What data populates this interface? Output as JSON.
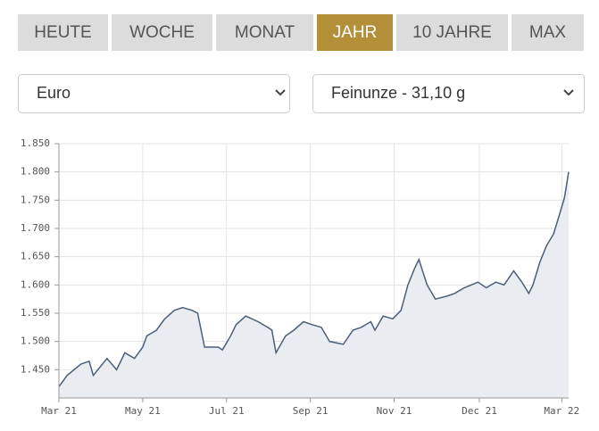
{
  "tabs": [
    "HEUTE",
    "WOCHE",
    "MONAT",
    "JAHR",
    "10 JAHRE",
    "MAX"
  ],
  "active_tab": 3,
  "selects": [
    "Euro",
    "Feinunze - 31,10 g"
  ],
  "chart_data": {
    "type": "area",
    "x": [
      0,
      6,
      16,
      22,
      25,
      35,
      42,
      48,
      55,
      61,
      64,
      71,
      77,
      84,
      90,
      97,
      101,
      106,
      116,
      119,
      125,
      129,
      136,
      145,
      152,
      155,
      158,
      165,
      171,
      178,
      184,
      191,
      197,
      207,
      214,
      220,
      227,
      230,
      236,
      243,
      249,
      254,
      259,
      262,
      268,
      274,
      282,
      288,
      295,
      305,
      311,
      318,
      324,
      331,
      337,
      342,
      345,
      350,
      355,
      360,
      365,
      368,
      371
    ],
    "values": [
      1420,
      1440,
      1460,
      1465,
      1440,
      1470,
      1450,
      1480,
      1470,
      1490,
      1510,
      1520,
      1540,
      1555,
      1560,
      1555,
      1550,
      1490,
      1490,
      1485,
      1510,
      1530,
      1545,
      1535,
      1525,
      1520,
      1480,
      1510,
      1520,
      1535,
      1530,
      1525,
      1500,
      1495,
      1520,
      1525,
      1535,
      1520,
      1545,
      1540,
      1555,
      1600,
      1630,
      1645,
      1600,
      1575,
      1580,
      1585,
      1595,
      1605,
      1595,
      1605,
      1600,
      1625,
      1605,
      1585,
      1600,
      1640,
      1670,
      1690,
      1730,
      1755,
      1800
    ],
    "color": "#4b5f78",
    "fill": "#e9ecf1",
    "xlim": [
      0,
      371
    ],
    "xticks": [
      {
        "value": 0,
        "label": "Mar 21"
      },
      {
        "value": 61,
        "label": "May 21"
      },
      {
        "value": 122,
        "label": "Jul 21"
      },
      {
        "value": 183,
        "label": "Sep 21"
      },
      {
        "value": 244,
        "label": "Nov 21"
      },
      {
        "value": 306,
        "label": "Dec 21"
      },
      {
        "value": 366,
        "label": "Mar 22"
      }
    ],
    "ylim": [
      1400,
      1850
    ],
    "yticks": [
      {
        "value": 1450,
        "label": "1.450"
      },
      {
        "value": 1500,
        "label": "1.500"
      },
      {
        "value": 1550,
        "label": "1.550"
      },
      {
        "value": 1600,
        "label": "1.600"
      },
      {
        "value": 1650,
        "label": "1.650"
      },
      {
        "value": 1700,
        "label": "1.700"
      },
      {
        "value": 1750,
        "label": "1.750"
      },
      {
        "value": 1800,
        "label": "1.800"
      },
      {
        "value": 1850,
        "label": "1.850"
      }
    ],
    "grid": true
  }
}
